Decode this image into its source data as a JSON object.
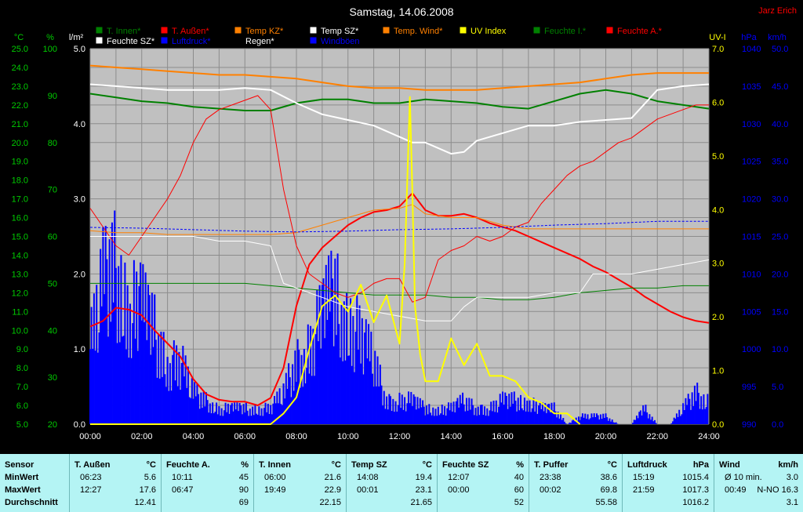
{
  "chart_data": {
    "type": "line",
    "title": "Samstag, 14.06.2008",
    "author": "Jarz Erich",
    "x_ticks": [
      "00:00",
      "02:00",
      "04:00",
      "06:00",
      "08:00",
      "10:00",
      "12:00",
      "14:00",
      "16:00",
      "18:00",
      "20:00",
      "22:00",
      "24:00"
    ],
    "xlim": [
      0,
      24
    ],
    "axes": {
      "celsius": {
        "unit": "°C",
        "range": [
          5,
          25
        ],
        "ticks": [
          "5.0",
          "6.0",
          "7.0",
          "8.0",
          "9.0",
          "10.0",
          "11.0",
          "12.0",
          "13.0",
          "14.0",
          "15.0",
          "16.0",
          "17.0",
          "18.0",
          "19.0",
          "20.0",
          "21.0",
          "22.0",
          "23.0",
          "24.0",
          "25.0"
        ],
        "color": "#00cc00"
      },
      "percent": {
        "unit": "%",
        "range": [
          20,
          100
        ],
        "ticks": [
          "20",
          "30",
          "40",
          "50",
          "60",
          "70",
          "80",
          "90",
          "100"
        ],
        "color": "#00cc00"
      },
      "rain": {
        "unit": "l/m²",
        "range": [
          0,
          5
        ],
        "ticks": [
          "0.0",
          "1.0",
          "2.0",
          "3.0",
          "4.0",
          "5.0"
        ],
        "color": "#ffffff"
      },
      "uv": {
        "unit": "UV-I",
        "range": [
          0,
          7
        ],
        "ticks": [
          "0.0",
          "1.0",
          "2.0",
          "3.0",
          "4.0",
          "5.0",
          "6.0",
          "7.0"
        ],
        "color": "#ffff00"
      },
      "pressure": {
        "unit": "hPa",
        "range": [
          990,
          1040
        ],
        "ticks": [
          "990",
          "995",
          "1000",
          "1005",
          "1010",
          "1015",
          "1020",
          "1025",
          "1030",
          "1035",
          "1040"
        ],
        "color": "#0000ff"
      },
      "wind": {
        "unit": "km/h",
        "range": [
          0,
          50
        ],
        "ticks": [
          "0.0",
          "5.0",
          "10.0",
          "15.0",
          "20.0",
          "25.0",
          "30.0",
          "35.0",
          "40.0",
          "45.0",
          "50.0"
        ],
        "color": "#0000ff"
      }
    },
    "legend": [
      {
        "label": "T. Innen*",
        "color": "#008000"
      },
      {
        "label": "T. Außen*",
        "color": "#ff0000"
      },
      {
        "label": "Temp KZ*",
        "color": "#ff8000"
      },
      {
        "label": "Temp SZ*",
        "color": "#ffffff"
      },
      {
        "label": "Temp. Wind*",
        "color": "#ff8000"
      },
      {
        "label": "UV Index",
        "color": "#ffff00"
      },
      {
        "label": "Feuchte I.*",
        "color": "#008000"
      },
      {
        "label": "Feuchte A.*",
        "color": "#ff0000"
      },
      {
        "label": "Feuchte SZ*",
        "color": "#ffffff"
      },
      {
        "label": "Luftdruck*",
        "color": "#0000ff"
      },
      {
        "label": "Regen*",
        "color": "#000000"
      },
      {
        "label": "Windböen",
        "color": "#0000ff"
      }
    ],
    "series": [
      {
        "name": "T. Innen*",
        "axis": "celsius",
        "color": "#008000",
        "width": 2,
        "x": [
          0,
          1,
          2,
          3,
          4,
          5,
          6,
          7,
          8,
          9,
          10,
          11,
          12,
          13,
          14,
          15,
          16,
          17,
          18,
          19,
          20,
          21,
          22,
          23,
          24
        ],
        "y": [
          22.6,
          22.4,
          22.2,
          22.1,
          21.9,
          21.8,
          21.7,
          21.7,
          22.1,
          22.3,
          22.3,
          22.1,
          22.1,
          22.3,
          22.2,
          22.1,
          21.9,
          21.8,
          22.2,
          22.6,
          22.8,
          22.6,
          22.2,
          22.0,
          21.8
        ]
      },
      {
        "name": "Temp KZ*",
        "axis": "celsius",
        "color": "#ff8000",
        "width": 2,
        "x": [
          0,
          1,
          2,
          3,
          4,
          5,
          6,
          7,
          8,
          9,
          10,
          11,
          12,
          13,
          14,
          15,
          16,
          17,
          18,
          19,
          20,
          21,
          22,
          23,
          24
        ],
        "y": [
          24.1,
          24.0,
          23.9,
          23.8,
          23.7,
          23.6,
          23.6,
          23.5,
          23.4,
          23.2,
          23.0,
          22.9,
          22.9,
          22.8,
          22.8,
          22.8,
          22.9,
          23.0,
          23.1,
          23.2,
          23.4,
          23.6,
          23.7,
          23.7,
          23.7
        ]
      },
      {
        "name": "Temp SZ*",
        "axis": "celsius",
        "color": "#ffffff",
        "width": 2,
        "x": [
          0,
          1,
          2,
          3,
          4,
          5,
          6,
          7,
          8,
          9,
          10,
          11,
          12,
          12.5,
          13,
          14,
          14.5,
          15,
          16,
          17,
          18,
          19,
          20,
          21,
          22,
          23,
          24
        ],
        "y": [
          23.1,
          23.0,
          22.9,
          22.8,
          22.8,
          22.8,
          22.9,
          22.8,
          22.1,
          21.5,
          21.2,
          20.9,
          20.3,
          20.0,
          20.0,
          19.4,
          19.5,
          20.1,
          20.5,
          20.9,
          20.9,
          21.1,
          21.2,
          21.3,
          22.8,
          23.0,
          23.1
        ]
      },
      {
        "name": "T. Außen*",
        "axis": "celsius",
        "color": "#ff0000",
        "width": 2,
        "x": [
          0,
          0.5,
          1,
          1.5,
          2,
          2.5,
          3,
          3.5,
          4,
          4.5,
          5,
          5.5,
          6,
          6.5,
          7,
          7.5,
          8,
          8.5,
          9,
          9.5,
          10,
          10.5,
          11,
          11.5,
          12,
          12.5,
          13,
          13.5,
          14,
          14.5,
          15,
          15.5,
          16,
          16.5,
          17,
          17.5,
          18,
          18.5,
          19,
          19.5,
          20,
          20.5,
          21,
          21.5,
          22,
          22.5,
          23,
          23.5,
          24
        ],
        "y": [
          10.2,
          10.5,
          11.2,
          11.1,
          10.8,
          10.0,
          9.3,
          8.6,
          7.4,
          6.6,
          6.3,
          6.2,
          6.2,
          6.0,
          6.4,
          8.0,
          11.3,
          13.5,
          14.4,
          15.0,
          15.6,
          16.0,
          16.3,
          16.4,
          16.6,
          17.3,
          16.4,
          16.1,
          16.1,
          16.2,
          16.0,
          15.7,
          15.5,
          15.3,
          15.0,
          14.7,
          14.4,
          14.1,
          13.8,
          13.4,
          13.1,
          12.7,
          12.3,
          11.8,
          11.4,
          11.0,
          10.7,
          10.5,
          10.4
        ]
      },
      {
        "name": "Temp. Wind*",
        "axis": "celsius",
        "color": "#ff8000",
        "width": 1,
        "x": [
          0,
          1,
          2,
          3,
          4,
          5,
          6,
          7,
          8,
          9,
          10,
          11,
          12,
          12.5,
          13,
          14,
          15,
          16,
          17,
          18,
          19,
          20,
          21,
          22,
          23,
          24
        ],
        "y": [
          15.3,
          15.2,
          15.2,
          15.1,
          15.1,
          15.1,
          15.1,
          15.1,
          15.2,
          15.6,
          16.0,
          16.4,
          16.5,
          16.7,
          16.2,
          16.0,
          16.0,
          15.6,
          15.4,
          15.4,
          15.4,
          15.4,
          15.4,
          15.4,
          15.4,
          15.4
        ]
      },
      {
        "name": "Feuchte I.*",
        "axis": "percent",
        "color": "#008000",
        "width": 1,
        "x": [
          0,
          2,
          4,
          6,
          7,
          8,
          9,
          10,
          11,
          12,
          13,
          14,
          15,
          16,
          17,
          18,
          19,
          20,
          21,
          22,
          23,
          24
        ],
        "y": [
          50,
          50,
          50,
          50,
          49.5,
          49,
          48.5,
          48,
          47.5,
          47.5,
          47.5,
          47,
          47,
          46.5,
          46.5,
          47,
          48,
          48.5,
          49,
          49,
          49.5,
          49.5
        ]
      },
      {
        "name": "Feuchte A.*",
        "axis": "percent",
        "color": "#ff0000",
        "width": 1,
        "x": [
          0,
          0.5,
          1,
          1.5,
          2,
          2.5,
          3,
          3.5,
          4,
          4.5,
          5,
          5.5,
          6,
          6.5,
          7,
          7.5,
          8,
          8.5,
          9,
          9.5,
          10,
          10.5,
          11,
          11.5,
          12,
          12.5,
          13,
          13.5,
          14,
          14.5,
          15,
          15.5,
          16,
          16.5,
          17,
          17.5,
          18,
          18.5,
          19,
          19.5,
          20,
          20.5,
          21,
          21.5,
          22,
          22.5,
          23,
          23.5,
          24
        ],
        "y": [
          66,
          62,
          58,
          56,
          60,
          64,
          68,
          73,
          80,
          85,
          87,
          88,
          89,
          90,
          87,
          70,
          58,
          52,
          50,
          48,
          47,
          48,
          50,
          51,
          51,
          46,
          47,
          55,
          57,
          58,
          60,
          59,
          60,
          62,
          63,
          67,
          70,
          73,
          75,
          76,
          78,
          80,
          81,
          83,
          85,
          86,
          87,
          88,
          88
        ]
      },
      {
        "name": "Feuchte SZ*",
        "axis": "percent",
        "color": "#ffffff",
        "width": 1,
        "x": [
          0,
          1,
          2,
          3,
          4,
          5,
          6,
          7,
          7.5,
          8,
          9,
          10,
          11,
          12,
          13,
          14,
          14.5,
          15,
          16,
          17,
          18,
          19,
          19.5,
          20,
          21,
          22,
          23,
          24
        ],
        "y": [
          60,
          60,
          60,
          60,
          60,
          59,
          59,
          58,
          50,
          49,
          47,
          45,
          44,
          43,
          42,
          42,
          45,
          47,
          47,
          47,
          48,
          48,
          52,
          52,
          52,
          53,
          54,
          55
        ]
      },
      {
        "name": "Luftdruck*",
        "axis": "pressure",
        "color": "#0000ff",
        "width": 1,
        "x": [
          0,
          2,
          4,
          6,
          8,
          10,
          12,
          14,
          16,
          18,
          20,
          22,
          24
        ],
        "y": [
          1016.2,
          1016.1,
          1015.9,
          1015.7,
          1015.6,
          1015.7,
          1015.9,
          1016.0,
          1016.2,
          1016.5,
          1016.7,
          1017.0,
          1017.0
        ]
      },
      {
        "name": "UV Index",
        "axis": "uv",
        "color": "#ffff00",
        "width": 2,
        "x": [
          0,
          7,
          7.5,
          8,
          8.5,
          9,
          9.5,
          10,
          10.5,
          11,
          11.5,
          12,
          12.2,
          12.4,
          12.5,
          12.6,
          12.8,
          13,
          13.5,
          14,
          14.5,
          15,
          15.5,
          16,
          16.5,
          17,
          17.5,
          18,
          18.5,
          19
        ],
        "y": [
          0,
          0,
          0.2,
          0.5,
          1.4,
          2.2,
          2.4,
          2.1,
          2.6,
          1.9,
          2.4,
          1.5,
          3.0,
          6.1,
          4.3,
          2.2,
          1.3,
          0.8,
          0.8,
          1.6,
          1.1,
          1.5,
          0.9,
          0.9,
          0.8,
          0.5,
          0.4,
          0.2,
          0.2,
          0
        ]
      }
    ],
    "wind_gusts": {
      "axis": "wind",
      "color": "#0000ff",
      "x": [
        0,
        0.5,
        1,
        1.5,
        2,
        2.5,
        3,
        3.5,
        4,
        4.5,
        5,
        5.5,
        6,
        6.5,
        7,
        7.5,
        8,
        8.5,
        9,
        9.5,
        10,
        10.5,
        11,
        11.5,
        12,
        12.5,
        13,
        13.5,
        14,
        14.5,
        15,
        15.5,
        16,
        16.5,
        17,
        17.5,
        18,
        18.5,
        19,
        19.5,
        20,
        20.5,
        21,
        21.5,
        22,
        22.5,
        23,
        23.5,
        24
      ],
      "y": [
        10,
        18,
        20,
        16,
        15,
        12,
        8,
        8,
        4,
        3,
        2,
        2,
        2,
        2,
        2,
        4,
        8,
        10,
        14,
        17,
        14,
        11,
        8,
        3,
        3,
        3,
        2,
        2,
        2,
        3,
        2,
        2,
        3,
        3,
        3,
        2,
        2,
        0,
        1,
        1,
        1,
        0,
        0,
        2,
        0,
        0,
        2,
        4,
        3
      ]
    }
  },
  "stats": {
    "columns": [
      {
        "name": "Sensor",
        "unit": "",
        "rows": [
          {
            "time": "MinWert",
            "value": ""
          },
          {
            "time": "MaxWert",
            "value": ""
          },
          {
            "time": "Durchschnitt",
            "value": ""
          }
        ]
      },
      {
        "name": "T. Außen",
        "unit": "°C",
        "rows": [
          {
            "time": "06:23",
            "value": "5.6"
          },
          {
            "time": "12:27",
            "value": "17.6"
          },
          {
            "time": "",
            "value": "12.41"
          }
        ]
      },
      {
        "name": "Feuchte A.",
        "unit": "%",
        "rows": [
          {
            "time": "10:11",
            "value": "45"
          },
          {
            "time": "06:47",
            "value": "90"
          },
          {
            "time": "",
            "value": "69"
          }
        ]
      },
      {
        "name": "T. Innen",
        "unit": "°C",
        "rows": [
          {
            "time": "06:00",
            "value": "21.6"
          },
          {
            "time": "19:49",
            "value": "22.9"
          },
          {
            "time": "",
            "value": "22.15"
          }
        ]
      },
      {
        "name": "Temp SZ",
        "unit": "°C",
        "rows": [
          {
            "time": "14:08",
            "value": "19.4"
          },
          {
            "time": "00:01",
            "value": "23.1"
          },
          {
            "time": "",
            "value": "21.65"
          }
        ]
      },
      {
        "name": "Feuchte SZ",
        "unit": "%",
        "rows": [
          {
            "time": "12:07",
            "value": "40"
          },
          {
            "time": "00:00",
            "value": "60"
          },
          {
            "time": "",
            "value": "52"
          }
        ]
      },
      {
        "name": "T. Puffer",
        "unit": "°C",
        "rows": [
          {
            "time": "23:38",
            "value": "38.6"
          },
          {
            "time": "00:02",
            "value": "69.8"
          },
          {
            "time": "",
            "value": "55.58"
          }
        ]
      },
      {
        "name": "Luftdruck",
        "unit": "hPa",
        "rows": [
          {
            "time": "15:19",
            "value": "1015.4"
          },
          {
            "time": "21:59",
            "value": "1017.3"
          },
          {
            "time": "",
            "value": "1016.2"
          }
        ]
      },
      {
        "name": "Wind",
        "unit": "km/h",
        "rows": [
          {
            "time": "Ø 10 min.",
            "value": "3.0"
          },
          {
            "time": "00:49",
            "value": "N-NO 16.3"
          },
          {
            "time": "",
            "value": "3.1"
          }
        ]
      }
    ]
  }
}
